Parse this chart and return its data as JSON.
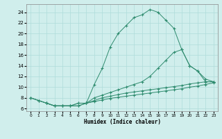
{
  "line1_x": [
    0,
    1,
    2,
    3,
    4,
    5,
    6,
    7,
    8,
    9,
    10,
    11,
    12,
    13,
    14,
    15,
    16,
    17,
    18,
    19,
    20,
    21,
    22,
    23
  ],
  "line1_y": [
    8,
    7.5,
    7,
    6.5,
    6.5,
    6.5,
    7,
    7,
    10.5,
    13.5,
    17.5,
    20,
    21.5,
    23,
    23.5,
    24.5,
    24,
    22.5,
    21,
    17,
    14,
    13,
    11,
    11
  ],
  "line2_x": [
    0,
    1,
    2,
    3,
    4,
    5,
    6,
    7,
    8,
    9,
    10,
    11,
    12,
    13,
    14,
    15,
    16,
    17,
    18,
    19,
    20,
    21,
    22,
    23
  ],
  "line2_y": [
    8,
    7.5,
    7,
    6.5,
    6.5,
    6.5,
    7,
    7,
    8.0,
    8.5,
    9.0,
    9.5,
    10.0,
    10.5,
    11.0,
    12.0,
    13.5,
    15.0,
    16.5,
    17.0,
    14.0,
    13.0,
    11.5,
    11.0
  ],
  "line3_x": [
    0,
    1,
    2,
    3,
    4,
    5,
    6,
    7,
    8,
    9,
    10,
    11,
    12,
    13,
    14,
    15,
    16,
    17,
    18,
    19,
    20,
    21,
    22,
    23
  ],
  "line3_y": [
    8,
    7.5,
    7.0,
    6.5,
    6.5,
    6.5,
    6.5,
    7.0,
    7.5,
    8.0,
    8.3,
    8.6,
    8.9,
    9.1,
    9.3,
    9.5,
    9.7,
    9.9,
    10.1,
    10.3,
    10.6,
    10.8,
    11.0,
    11.0
  ],
  "line4_x": [
    2,
    3,
    4,
    5,
    6,
    7,
    8,
    9,
    10,
    11,
    12,
    13,
    14,
    15,
    16,
    17,
    18,
    19,
    20,
    21,
    22,
    23
  ],
  "line4_y": [
    7.0,
    6.5,
    6.5,
    6.5,
    6.5,
    7.0,
    7.3,
    7.6,
    7.9,
    8.1,
    8.3,
    8.5,
    8.7,
    8.9,
    9.1,
    9.3,
    9.5,
    9.7,
    10.0,
    10.2,
    10.5,
    10.8
  ],
  "line_color": "#2E8B6E",
  "bg_color": "#D0EEEC",
  "grid_color": "#AEDCDA",
  "xlabel": "Humidex (Indice chaleur)",
  "xlim": [
    -0.5,
    23.5
  ],
  "ylim": [
    5.5,
    25.5
  ],
  "yticks": [
    6,
    8,
    10,
    12,
    14,
    16,
    18,
    20,
    22,
    24
  ],
  "xticks": [
    0,
    1,
    2,
    3,
    4,
    5,
    6,
    7,
    8,
    9,
    10,
    11,
    12,
    13,
    14,
    15,
    16,
    17,
    18,
    19,
    20,
    21,
    22,
    23
  ]
}
